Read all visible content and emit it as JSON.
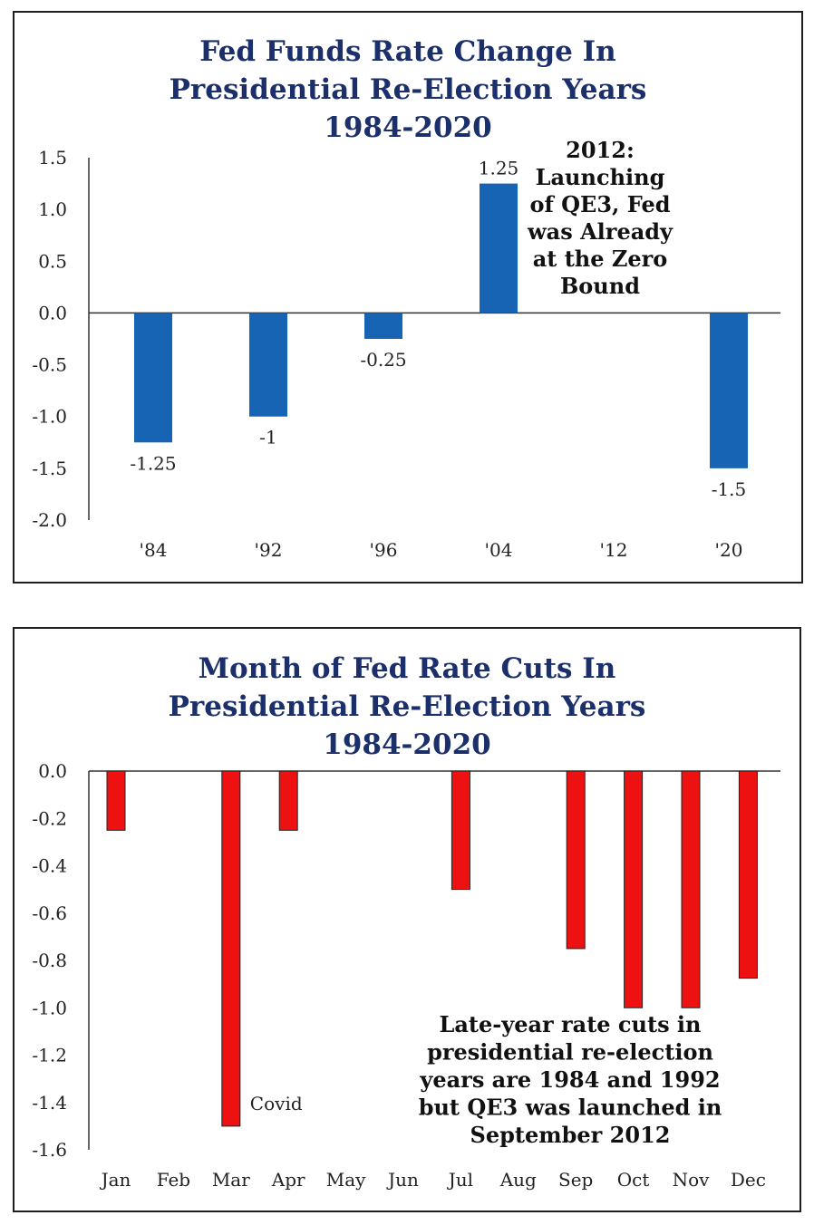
{
  "chart_data": [
    {
      "type": "bar",
      "title_lines": [
        "Fed Funds Rate Change In",
        "Presidential Re-Election Years",
        "1984-2020"
      ],
      "categories": [
        "'84",
        "'92",
        "'96",
        "'04",
        "'12",
        "'20"
      ],
      "values": [
        -1.25,
        -1,
        -0.25,
        1.25,
        0,
        -1.5
      ],
      "data_labels": [
        "-1.25",
        "-1",
        "-0.25",
        "1.25",
        "",
        "-1.5"
      ],
      "ylim": [
        -2.0,
        1.5
      ],
      "yticks": [
        "1.5",
        "1.0",
        "0.5",
        "0.0",
        "-0.5",
        "-1.0",
        "-1.5",
        "-2.0"
      ],
      "ytick_values": [
        1.5,
        1.0,
        0.5,
        0.0,
        -0.5,
        -1.0,
        -1.5,
        -2.0
      ],
      "bar_color": "#1764b4",
      "annotation_lines": [
        "2012:",
        "Launching",
        "of QE3, Fed",
        "was Already",
        "at the Zero",
        "Bound"
      ],
      "grid": false
    },
    {
      "type": "bar",
      "title_lines": [
        "Month of Fed Rate Cuts In",
        "Presidential Re-Election Years",
        "1984-2020"
      ],
      "categories": [
        "Jan",
        "Feb",
        "Mar",
        "Apr",
        "May",
        "Jun",
        "Jul",
        "Aug",
        "Sep",
        "Oct",
        "Nov",
        "Dec"
      ],
      "values": [
        -0.25,
        0,
        -1.5,
        -0.25,
        0,
        0,
        -0.5,
        0,
        -0.75,
        -1.0,
        -1.0,
        -0.875
      ],
      "ylim": [
        -1.6,
        0.0
      ],
      "yticks": [
        "0.0",
        "-0.2",
        "-0.4",
        "-0.6",
        "-0.8",
        "-1.0",
        "-1.2",
        "-1.4",
        "-1.6"
      ],
      "ytick_values": [
        0.0,
        -0.2,
        -0.4,
        -0.6,
        -0.8,
        -1.0,
        -1.2,
        -1.4,
        -1.6
      ],
      "bar_color": "#ee1111",
      "bar_label": "Covid",
      "annotation_lines": [
        "Late-year rate cuts in",
        "presidential re-election",
        "years are 1984 and 1992",
        "but QE3 was launched in",
        "September 2012"
      ],
      "grid": false
    }
  ]
}
